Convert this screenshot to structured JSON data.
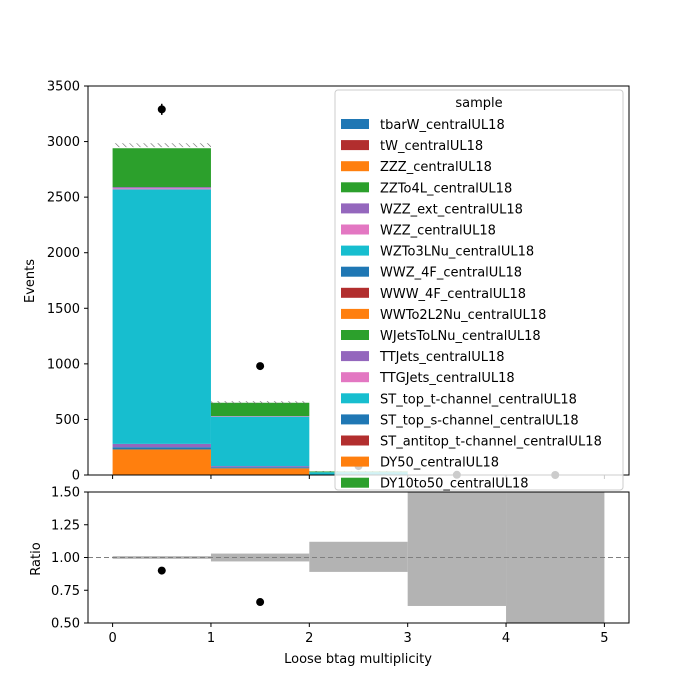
{
  "chart_data": [
    {
      "type": "bar",
      "stacked": true,
      "ylabel": "Events",
      "ylim": [
        0,
        3500
      ],
      "yticks": [
        0,
        500,
        1000,
        1500,
        2000,
        2500,
        3000,
        3500
      ],
      "x_bin_edges": [
        0,
        1,
        2,
        3,
        4,
        5
      ],
      "xlim": [
        -0.25,
        5.25
      ],
      "legend": {
        "title": "sample",
        "placement": "top-right",
        "entries": [
          {
            "name": "tbarW_centralUL18",
            "color": "#1f77b4"
          },
          {
            "name": "tW_centralUL18",
            "color": "#b22e2e"
          },
          {
            "name": "ZZZ_centralUL18",
            "color": "#ff7f0e"
          },
          {
            "name": "ZZTo4L_centralUL18",
            "color": "#2ca02c"
          },
          {
            "name": "WZZ_ext_centralUL18",
            "color": "#9467bd"
          },
          {
            "name": "WZZ_centralUL18",
            "color": "#e377c2"
          },
          {
            "name": "WZTo3LNu_centralUL18",
            "color": "#17becf"
          },
          {
            "name": "WWZ_4F_centralUL18",
            "color": "#1f77b4"
          },
          {
            "name": "WWW_4F_centralUL18",
            "color": "#b22e2e"
          },
          {
            "name": "WWTo2L2Nu_centralUL18",
            "color": "#ff7f0e"
          },
          {
            "name": "WJetsToLNu_centralUL18",
            "color": "#2ca02c"
          },
          {
            "name": "TTJets_centralUL18",
            "color": "#9467bd"
          },
          {
            "name": "TTGJets_centralUL18",
            "color": "#e377c2"
          },
          {
            "name": "ST_top_t-channel_centralUL18",
            "color": "#17becf"
          },
          {
            "name": "ST_top_s-channel_centralUL18",
            "color": "#1f77b4"
          },
          {
            "name": "ST_antitop_t-channel_centralUL18",
            "color": "#b22e2e"
          },
          {
            "name": "DY50_centralUL18",
            "color": "#ff7f0e"
          },
          {
            "name": "DY10to50_centralUL18",
            "color": "#2ca02c"
          }
        ]
      },
      "stack_bins": [
        {
          "bin": [
            0,
            1
          ],
          "layers": [
            {
              "color": "#ff7f0e",
              "value": 230
            },
            {
              "color": "#1f77b4",
              "value": 20
            },
            {
              "color": "#9467bd",
              "value": 30
            },
            {
              "color": "#17becf",
              "value": 2290
            },
            {
              "color": "#e377c2",
              "value": 10
            },
            {
              "color": "#9467bd",
              "value": 10
            },
            {
              "color": "#2ca02c",
              "value": 350
            }
          ]
        },
        {
          "bin": [
            1,
            2
          ],
          "layers": [
            {
              "color": "#ff7f0e",
              "value": 60
            },
            {
              "color": "#1f77b4",
              "value": 10
            },
            {
              "color": "#9467bd",
              "value": 10
            },
            {
              "color": "#17becf",
              "value": 445
            },
            {
              "color": "#e377c2",
              "value": 5
            },
            {
              "color": "#2ca02c",
              "value": 120
            }
          ]
        },
        {
          "bin": [
            2,
            3
          ],
          "layers": [
            {
              "color": "#ff7f0e",
              "value": 3
            },
            {
              "color": "#17becf",
              "value": 22
            },
            {
              "color": "#2ca02c",
              "value": 7
            }
          ]
        }
      ],
      "mc_uncertainty_hatch": [
        {
          "bin": [
            0,
            1
          ],
          "low": 2950,
          "high": 2985
        },
        {
          "bin": [
            1,
            2
          ],
          "low": 640,
          "high": 665
        },
        {
          "bin": [
            2,
            3
          ],
          "low": 28,
          "high": 36
        }
      ],
      "data_points": [
        {
          "x": 0.5,
          "y": 3290,
          "err": 50
        },
        {
          "x": 1.5,
          "y": 980,
          "err": 30
        },
        {
          "x": 2.5,
          "y": 80,
          "err": 9
        },
        {
          "x": 3.5,
          "y": 2,
          "err": 1.5
        },
        {
          "x": 4.5,
          "y": 0,
          "err": 0
        }
      ]
    },
    {
      "type": "bar",
      "xlabel": "Loose btag multiplicity",
      "ylabel": "Ratio",
      "ylim": [
        0.5,
        1.5
      ],
      "yticks": [
        "0.50",
        "0.75",
        "1.00",
        "1.25",
        "1.50"
      ],
      "ytick_values": [
        0.5,
        0.75,
        1.0,
        1.25,
        1.5
      ],
      "xticks": [
        "0",
        "1",
        "2",
        "3",
        "4",
        "5"
      ],
      "xtick_values": [
        0,
        1,
        2,
        3,
        4,
        5
      ],
      "xlim": [
        -0.25,
        5.25
      ],
      "reference_line": 1.0,
      "uncertainty_bands": [
        {
          "bin": [
            0,
            1
          ],
          "low": 0.99,
          "high": 1.01
        },
        {
          "bin": [
            1,
            2
          ],
          "low": 0.97,
          "high": 1.03
        },
        {
          "bin": [
            2,
            3
          ],
          "low": 0.89,
          "high": 1.12
        },
        {
          "bin": [
            3,
            4
          ],
          "low": 0.63,
          "high": 1.5
        },
        {
          "bin": [
            4,
            5
          ],
          "low": 0.5,
          "high": 1.5
        }
      ],
      "points": [
        {
          "x": 0.5,
          "y": 0.9
        },
        {
          "x": 1.5,
          "y": 0.66
        }
      ]
    }
  ]
}
